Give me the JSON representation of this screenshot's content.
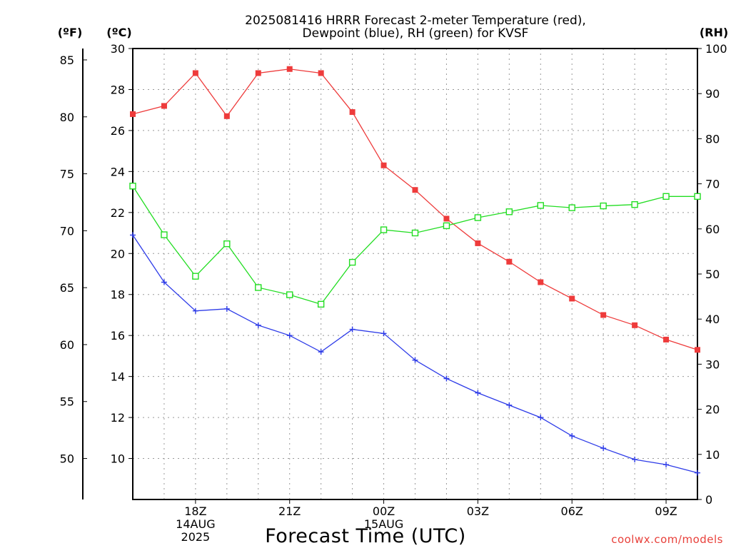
{
  "chart_data": {
    "type": "line",
    "title": [
      "2025081416 HRRR Forecast 2-meter Temperature (red),",
      "Dewpoint (blue), RH (green) for KVSF"
    ],
    "xlabel": "Forecast Time (UTC)",
    "credit": "coolwx.com/models",
    "units": {
      "fahrenheit": "(ºF)",
      "celsius": "(ºC)",
      "rh": "(RH)"
    },
    "x_hours": [
      16,
      17,
      18,
      19,
      20,
      21,
      22,
      23,
      24,
      25,
      26,
      27,
      28,
      29,
      30,
      31,
      32,
      33,
      34
    ],
    "xlim": [
      16,
      34
    ],
    "x_ticks": [
      {
        "hour": 18,
        "lines": [
          "18Z",
          "14AUG",
          "2025"
        ]
      },
      {
        "hour": 21,
        "lines": [
          "21Z"
        ]
      },
      {
        "hour": 24,
        "lines": [
          "00Z",
          "15AUG"
        ]
      },
      {
        "hour": 27,
        "lines": [
          "03Z"
        ]
      },
      {
        "hour": 30,
        "lines": [
          "06Z"
        ]
      },
      {
        "hour": 33,
        "lines": [
          "09Z"
        ]
      }
    ],
    "y_celsius": {
      "lim": [
        8,
        30
      ],
      "ticks": [
        "10",
        "12",
        "14",
        "16",
        "18",
        "20",
        "22",
        "24",
        "26",
        "28",
        "30"
      ]
    },
    "y_fahrenheit": {
      "ticks": [
        "50",
        "55",
        "60",
        "65",
        "70",
        "75",
        "80",
        "85"
      ]
    },
    "y_rh": {
      "lim": [
        0,
        100
      ],
      "ticks": [
        "0",
        "10",
        "20",
        "30",
        "40",
        "50",
        "60",
        "70",
        "80",
        "90",
        "100"
      ]
    },
    "grid": true,
    "series": [
      {
        "axis": "celsius",
        "color": "#ee3b3b",
        "marker": "filled-square",
        "values": [
          26.8,
          27.2,
          28.8,
          26.7,
          28.8,
          29.0,
          28.8,
          26.9,
          24.3,
          23.1,
          21.7,
          20.5,
          19.6,
          18.6,
          17.8,
          17.0,
          16.5,
          15.8,
          15.3
        ]
      },
      {
        "axis": "celsius",
        "color": "#2d3be8",
        "marker": "plus",
        "values": [
          20.9,
          18.6,
          17.2,
          17.3,
          16.5,
          16.0,
          15.2,
          16.3,
          16.1,
          14.8,
          13.9,
          13.2,
          12.6,
          12.0,
          11.1,
          10.5,
          9.95,
          9.7,
          9.3
        ]
      },
      {
        "axis": "rh",
        "color": "#22dd22",
        "marker": "open-square",
        "values": [
          69.5,
          58.7,
          49.5,
          56.7,
          47.0,
          45.4,
          43.3,
          52.6,
          59.8,
          59.1,
          60.7,
          62.5,
          63.8,
          65.2,
          64.7,
          65.1,
          65.4,
          67.2,
          67.2
        ]
      }
    ]
  }
}
